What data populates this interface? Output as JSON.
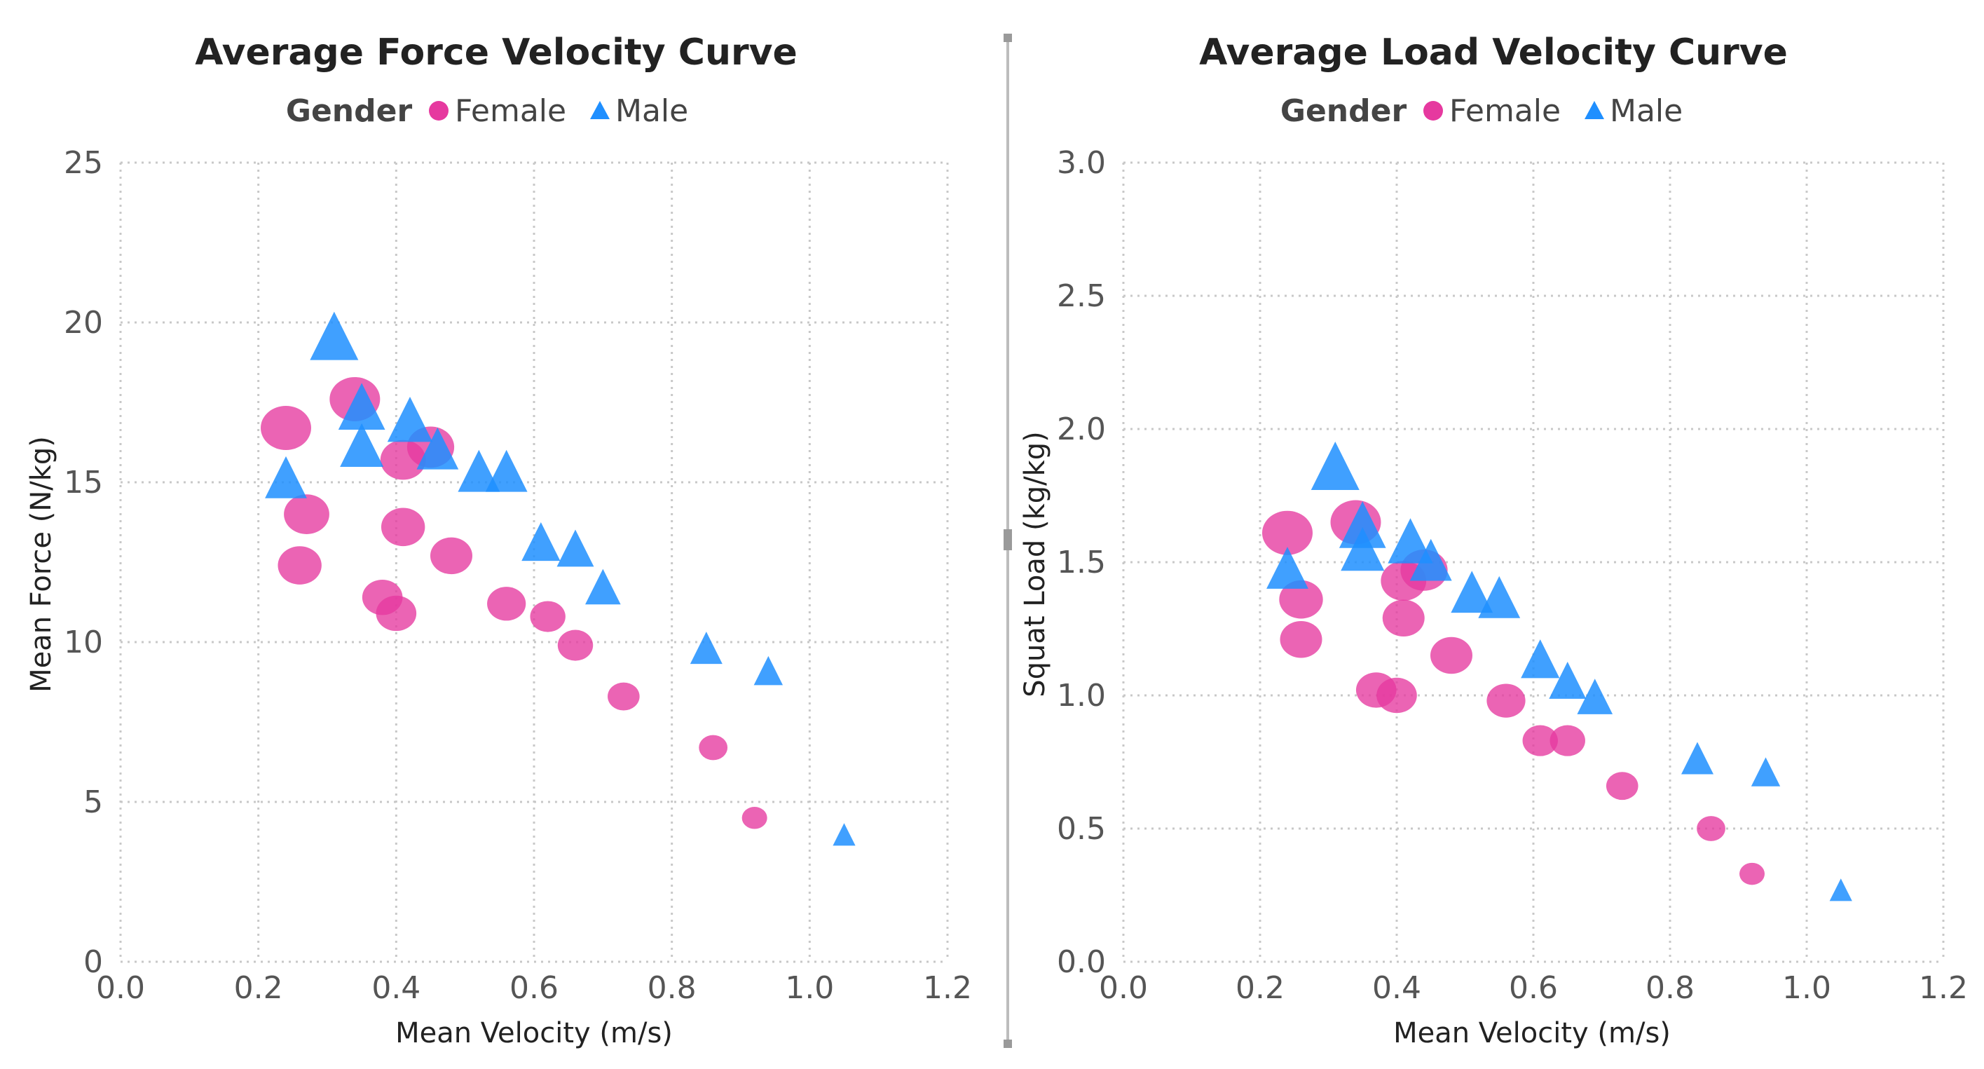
{
  "colors": {
    "female": "#e6399f",
    "male": "#1f8fff",
    "text": "#222222",
    "tick": "#555555",
    "grid": "#c8c8c8",
    "divider": "#bdbdbd"
  },
  "chart_data": [
    {
      "type": "scatter",
      "title": "Average Force Velocity Curve",
      "legend_title": "Gender",
      "legend": [
        "Female",
        "Male"
      ],
      "legend_position": "top",
      "xlabel": "Mean Velocity (m/s)",
      "ylabel": "Mean Force (N/kg)",
      "xlim": [
        0.0,
        1.2
      ],
      "ylim": [
        0,
        25
      ],
      "xticks": [
        "0.0",
        "0.2",
        "0.4",
        "0.6",
        "0.8",
        "1.0",
        "1.2"
      ],
      "yticks": [
        "0",
        "5",
        "10",
        "15",
        "20",
        "25"
      ],
      "grid": true,
      "series": [
        {
          "name": "Female",
          "marker": "circle",
          "points": [
            {
              "x": 0.24,
              "y": 16.7,
              "s": 3
            },
            {
              "x": 0.27,
              "y": 14.0,
              "s": 2.7
            },
            {
              "x": 0.26,
              "y": 12.4,
              "s": 2.6
            },
            {
              "x": 0.34,
              "y": 17.6,
              "s": 3
            },
            {
              "x": 0.41,
              "y": 15.7,
              "s": 2.7
            },
            {
              "x": 0.45,
              "y": 16.1,
              "s": 2.8
            },
            {
              "x": 0.41,
              "y": 13.6,
              "s": 2.6
            },
            {
              "x": 0.38,
              "y": 11.4,
              "s": 2.4
            },
            {
              "x": 0.4,
              "y": 10.9,
              "s": 2.4
            },
            {
              "x": 0.48,
              "y": 12.7,
              "s": 2.5
            },
            {
              "x": 0.56,
              "y": 11.2,
              "s": 2.3
            },
            {
              "x": 0.62,
              "y": 10.8,
              "s": 2.1
            },
            {
              "x": 0.66,
              "y": 9.9,
              "s": 2.1
            },
            {
              "x": 0.73,
              "y": 8.3,
              "s": 1.9
            },
            {
              "x": 0.86,
              "y": 6.7,
              "s": 1.7
            },
            {
              "x": 0.92,
              "y": 4.5,
              "s": 1.5
            }
          ]
        },
        {
          "name": "Male",
          "marker": "triangle",
          "points": [
            {
              "x": 0.24,
              "y": 15.0,
              "s": 2.6
            },
            {
              "x": 0.31,
              "y": 19.4,
              "s": 3
            },
            {
              "x": 0.35,
              "y": 17.2,
              "s": 2.9
            },
            {
              "x": 0.35,
              "y": 16.0,
              "s": 2.7
            },
            {
              "x": 0.42,
              "y": 16.8,
              "s": 2.8
            },
            {
              "x": 0.46,
              "y": 15.9,
              "s": 2.6
            },
            {
              "x": 0.52,
              "y": 15.2,
              "s": 2.6
            },
            {
              "x": 0.56,
              "y": 15.2,
              "s": 2.6
            },
            {
              "x": 0.61,
              "y": 13.0,
              "s": 2.4
            },
            {
              "x": 0.66,
              "y": 12.8,
              "s": 2.3
            },
            {
              "x": 0.7,
              "y": 11.6,
              "s": 2.2
            },
            {
              "x": 0.85,
              "y": 9.7,
              "s": 2
            },
            {
              "x": 0.94,
              "y": 9.0,
              "s": 1.8
            },
            {
              "x": 1.05,
              "y": 3.9,
              "s": 1.4
            }
          ]
        }
      ]
    },
    {
      "type": "scatter",
      "title": "Average Load Velocity Curve",
      "legend_title": "Gender",
      "legend": [
        "Female",
        "Male"
      ],
      "legend_position": "top",
      "xlabel": "Mean Velocity (m/s)",
      "ylabel": "Squat Load (kg/kg)",
      "xlim": [
        0.0,
        1.2
      ],
      "ylim": [
        0.0,
        3.0
      ],
      "xticks": [
        "0.0",
        "0.2",
        "0.4",
        "0.6",
        "0.8",
        "1.0",
        "1.2"
      ],
      "yticks": [
        "0.0",
        "0.5",
        "1.0",
        "1.5",
        "2.0",
        "2.5",
        "3.0"
      ],
      "grid": true,
      "series": [
        {
          "name": "Female",
          "marker": "circle",
          "points": [
            {
              "x": 0.24,
              "y": 1.61,
              "s": 3
            },
            {
              "x": 0.26,
              "y": 1.36,
              "s": 2.6
            },
            {
              "x": 0.26,
              "y": 1.21,
              "s": 2.5
            },
            {
              "x": 0.34,
              "y": 1.65,
              "s": 3
            },
            {
              "x": 0.41,
              "y": 1.43,
              "s": 2.7
            },
            {
              "x": 0.44,
              "y": 1.47,
              "s": 2.8
            },
            {
              "x": 0.41,
              "y": 1.29,
              "s": 2.5
            },
            {
              "x": 0.37,
              "y": 1.02,
              "s": 2.4
            },
            {
              "x": 0.4,
              "y": 1.0,
              "s": 2.4
            },
            {
              "x": 0.48,
              "y": 1.15,
              "s": 2.5
            },
            {
              "x": 0.56,
              "y": 0.98,
              "s": 2.3
            },
            {
              "x": 0.61,
              "y": 0.83,
              "s": 2.1
            },
            {
              "x": 0.65,
              "y": 0.83,
              "s": 2.1
            },
            {
              "x": 0.73,
              "y": 0.66,
              "s": 1.9
            },
            {
              "x": 0.86,
              "y": 0.5,
              "s": 1.7
            },
            {
              "x": 0.92,
              "y": 0.33,
              "s": 1.5
            }
          ]
        },
        {
          "name": "Male",
          "marker": "triangle",
          "points": [
            {
              "x": 0.24,
              "y": 1.46,
              "s": 2.6
            },
            {
              "x": 0.31,
              "y": 1.84,
              "s": 3
            },
            {
              "x": 0.35,
              "y": 1.62,
              "s": 2.9
            },
            {
              "x": 0.35,
              "y": 1.53,
              "s": 2.7
            },
            {
              "x": 0.42,
              "y": 1.56,
              "s": 2.8
            },
            {
              "x": 0.45,
              "y": 1.49,
              "s": 2.6
            },
            {
              "x": 0.51,
              "y": 1.37,
              "s": 2.6
            },
            {
              "x": 0.55,
              "y": 1.35,
              "s": 2.6
            },
            {
              "x": 0.61,
              "y": 1.12,
              "s": 2.4
            },
            {
              "x": 0.65,
              "y": 1.04,
              "s": 2.3
            },
            {
              "x": 0.69,
              "y": 0.98,
              "s": 2.2
            },
            {
              "x": 0.84,
              "y": 0.75,
              "s": 2
            },
            {
              "x": 0.94,
              "y": 0.7,
              "s": 1.8
            },
            {
              "x": 1.05,
              "y": 0.26,
              "s": 1.4
            }
          ]
        }
      ]
    }
  ]
}
